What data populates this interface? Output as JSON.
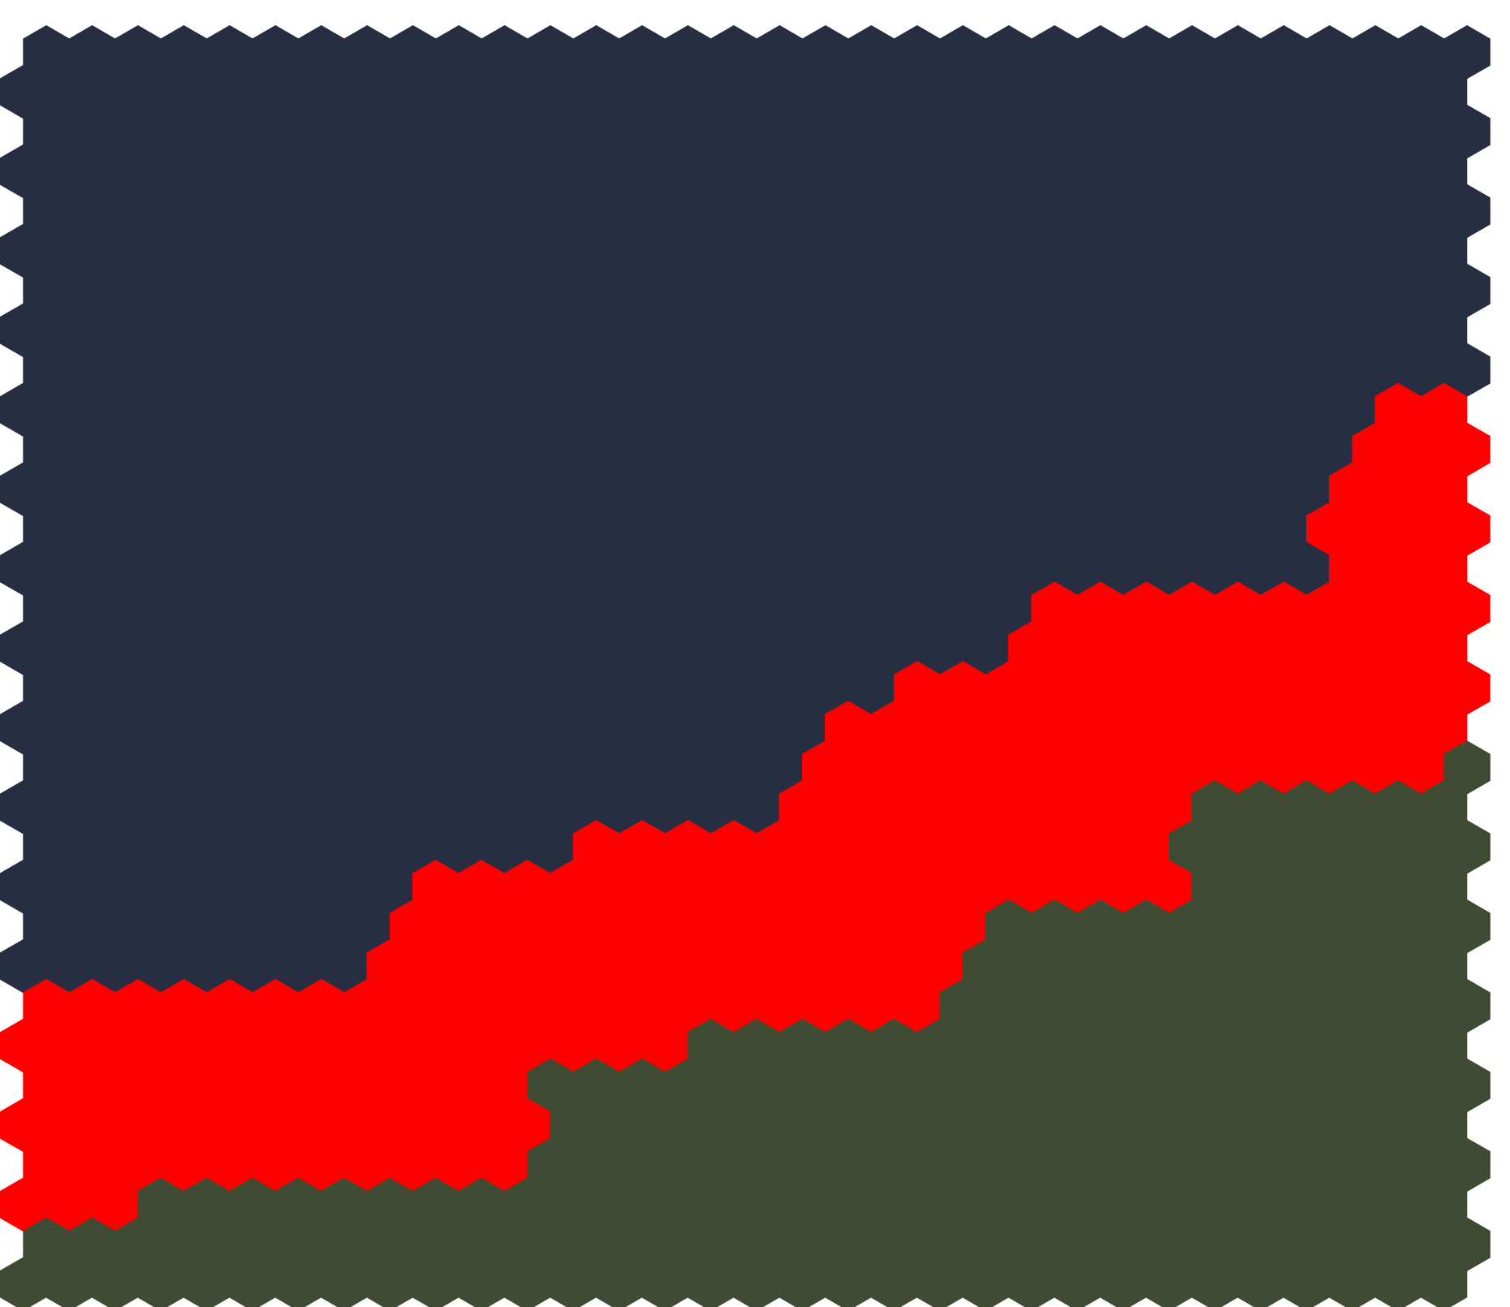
{
  "colors": {
    "top": "#282e42",
    "middle": "#ff0000",
    "bottom": "#404b33"
  }
}
